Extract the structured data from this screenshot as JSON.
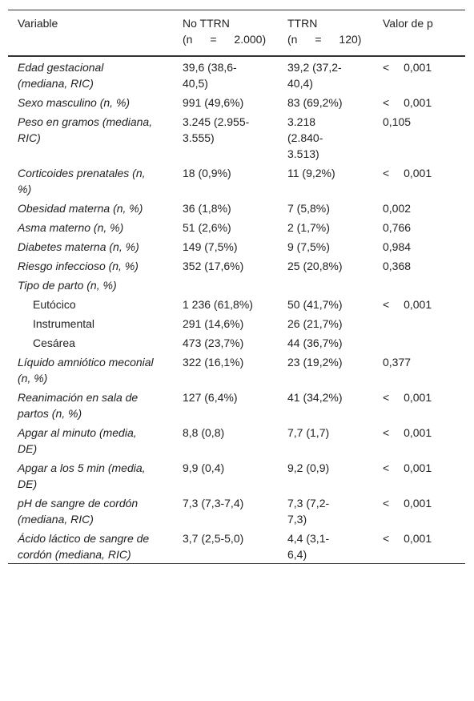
{
  "table": {
    "header": [
      {
        "label": "Variable"
      },
      {
        "label": "No TTRN",
        "sub": "(n = 2.000)"
      },
      {
        "label": "TTRN",
        "sub": "(n = 120)"
      },
      {
        "label": "Valor de p"
      }
    ],
    "rows": [
      [
        "Edad gestacional (mediana, RIC)",
        "39,6 (38,6-40,5)",
        "39,2 (37,2-40,4)",
        "< 0,001"
      ],
      [
        "Sexo masculino (n, %)",
        "991 (49,6%)",
        "83 (69,2%)",
        "< 0,001"
      ],
      [
        "Peso en gramos (mediana, RIC)",
        "3.245 (2.955-3.555)",
        "3.218 (2.840-3.513)",
        "0,105"
      ],
      [
        "Corticoides prenatales (n, %)",
        "18 (0,9%)",
        "11 (9,2%)",
        "< 0,001"
      ],
      [
        "Obesidad materna (n, %)",
        "36 (1,8%)",
        "7 (5,8%)",
        "0,002"
      ],
      [
        "Asma materno (n, %)",
        "51 (2,6%)",
        "2 (1,7%)",
        "0,766"
      ],
      [
        "Diabetes materna (n, %)",
        "149 (7,5%)",
        "9 (7,5%)",
        "0,984"
      ],
      [
        "Riesgo infeccioso (n, %)",
        "352 (17,6%)",
        "25 (20,8%)",
        "0,368"
      ],
      {
        "label": "Tipo de parto (n, %)",
        "rows": [
          [
            "Eutócico",
            "1 236 (61,8%)",
            "50 (41,7%)",
            "< 0,001"
          ],
          [
            "Instrumental",
            "291 (14,6%)",
            "26 (21,7%)",
            null
          ],
          [
            "Cesárea",
            "473 (23,7%)",
            "44 (36,7%)",
            null
          ]
        ]
      },
      [
        "Líquido amniótico meconial (n, %)",
        "322 (16,1%)",
        "23 (19,2%)",
        "0,377"
      ],
      [
        "Reanimación en sala de partos (n, %)",
        "127 (6,4%)",
        "41 (34,2%)",
        "< 0,001"
      ],
      [
        "Apgar al minuto (media, DE)",
        "8,8 (0,8)",
        "7,7 (1,7)",
        "< 0,001"
      ],
      [
        "Apgar a los 5 min (media, DE)",
        "9,9 (0,4)",
        "9,2 (0,9)",
        "< 0,001"
      ],
      [
        "pH de sangre de cordón (mediana, RIC)",
        "7,3 (7,3-7,4)",
        "7,3 (7,2-7,3)",
        "< 0,001"
      ],
      [
        "Ácido láctico de sangre de cordón (mediana, RIC)",
        "3,7 (2,5-5,0)",
        "4,4 (3,1-6,4)",
        "< 0,001"
      ]
    ]
  }
}
